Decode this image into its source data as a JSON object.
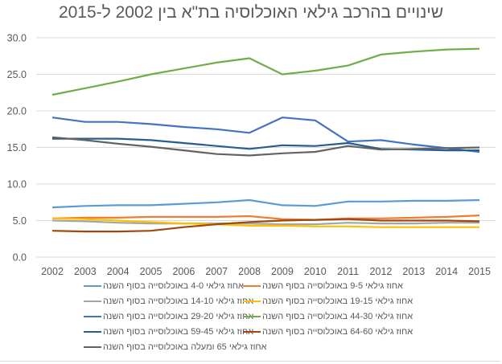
{
  "chart_data": {
    "type": "line",
    "title": "שינויים בהרכב גילאי האוכלוסיה בת\"א בין 2002 ל-2015",
    "xlabel": "",
    "ylabel": "",
    "ylim": [
      0,
      30
    ],
    "yticks": [
      "0.0",
      "5.0",
      "10.0",
      "15.0",
      "20.0",
      "25.0",
      "30.0"
    ],
    "ytick_values": [
      0,
      5,
      10,
      15,
      20,
      25,
      30
    ],
    "grid": true,
    "legend_position": "bottom",
    "x": [
      "2002",
      "2003",
      "2004",
      "2005",
      "2006",
      "2007",
      "2008",
      "2009",
      "2010",
      "2011",
      "2012",
      "2013",
      "2014",
      "2015"
    ],
    "series": [
      {
        "name": "אחוז גילאי 4-0  באוכלוסייה בסוף השנה",
        "color": "#5b9bd5",
        "values": [
          6.8,
          7.0,
          7.1,
          7.1,
          7.3,
          7.5,
          7.8,
          7.1,
          7.0,
          7.6,
          7.6,
          7.7,
          7.7,
          7.8
        ]
      },
      {
        "name": "אחוז גילאי 9-5  באוכלוסייה בסוף השנה",
        "color": "#ed7d31",
        "values": [
          5.3,
          5.4,
          5.4,
          5.5,
          5.5,
          5.5,
          5.6,
          5.2,
          5.1,
          5.3,
          5.3,
          5.4,
          5.5,
          5.7
        ]
      },
      {
        "name": "אחוז גילאי 14-10  באוכלוסייה בסוף השנה",
        "color": "#a5a5a5",
        "values": [
          5.0,
          4.9,
          4.7,
          4.6,
          4.6,
          4.6,
          4.6,
          4.5,
          4.5,
          4.7,
          4.6,
          4.6,
          4.7,
          4.7
        ]
      },
      {
        "name": "אחוז גילאי 19-15  באוכלוסייה בסוף השנה",
        "color": "#ffc000",
        "values": [
          5.3,
          5.2,
          5.0,
          4.8,
          4.6,
          4.5,
          4.3,
          4.3,
          4.2,
          4.2,
          4.1,
          4.1,
          4.1,
          4.1
        ]
      },
      {
        "name": "אחוז גילאי 29-20  באוכלוסייה בסוף השנה",
        "color": "#4472c4",
        "values": [
          19.1,
          18.5,
          18.5,
          18.2,
          17.8,
          17.5,
          17.0,
          19.1,
          18.7,
          15.8,
          16.0,
          15.4,
          14.9,
          14.4
        ]
      },
      {
        "name": "אחוז גילאי 44-30  באוכלוסייה בסוף השנה",
        "color": "#70ad47",
        "values": [
          22.2,
          23.1,
          24.0,
          25.0,
          25.8,
          26.6,
          27.2,
          25.0,
          25.5,
          26.2,
          27.7,
          28.1,
          28.4,
          28.5
        ]
      },
      {
        "name": "אחוז גילאי 59-45  באוכלוסייה בסוף השנה",
        "color": "#255e91",
        "values": [
          16.2,
          16.2,
          16.2,
          16.0,
          15.6,
          15.2,
          14.8,
          15.3,
          15.2,
          15.6,
          14.8,
          14.7,
          14.6,
          14.6
        ]
      },
      {
        "name": "אחוז גילאי 64-60  באוכלוסייה בסוף השנה",
        "color": "#9e480e",
        "values": [
          3.6,
          3.5,
          3.5,
          3.6,
          4.1,
          4.5,
          4.8,
          5.0,
          5.1,
          5.2,
          5.0,
          5.0,
          5.0,
          4.9
        ]
      },
      {
        "name": "אחוז גילאי 65 ומעלה  באוכלוסייה בסוף השנה",
        "color": "#636363",
        "values": [
          16.4,
          16.0,
          15.5,
          15.1,
          14.6,
          14.1,
          13.9,
          14.2,
          14.4,
          15.2,
          14.7,
          14.8,
          14.9,
          15.0
        ]
      }
    ]
  }
}
